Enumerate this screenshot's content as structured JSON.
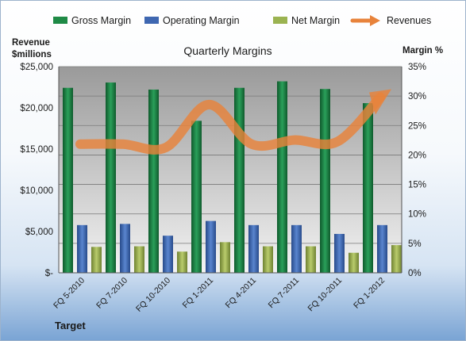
{
  "chart_data": {
    "type": "bar",
    "title": "Quarterly Margins",
    "left_axis_label": [
      "Revenue",
      "$millions"
    ],
    "right_axis_label": "Margin %",
    "xlabel": "Target",
    "categories": [
      "FQ 5-2010",
      "FQ 7-2010",
      "FQ 10-2010",
      "FQ 1-2011",
      "FQ 4-2011",
      "FQ 7-2011",
      "FQ 10-2011",
      "FQ 1-2012"
    ],
    "left_ticks": [
      "$-",
      "$5,000",
      "$10,000",
      "$15,000",
      "$20,000",
      "$25,000"
    ],
    "right_ticks": [
      "0%",
      "5%",
      "10%",
      "15%",
      "20%",
      "25%",
      "30%",
      "35%"
    ],
    "left_ylim": [
      0,
      25000
    ],
    "right_ylim": [
      0,
      35
    ],
    "legend_position": "top",
    "grid": true,
    "series": [
      {
        "name": "Gross Margin",
        "type": "bar",
        "axis": "right",
        "color": "#1f8a46",
        "values": [
          31.4,
          32.3,
          31.1,
          25.8,
          31.4,
          32.5,
          31.2,
          28.8
        ]
      },
      {
        "name": "Operating Margin",
        "type": "bar",
        "axis": "right",
        "color": "#3f67b1",
        "values": [
          8.1,
          8.3,
          6.3,
          8.8,
          8.1,
          8.1,
          6.6,
          8.1
        ]
      },
      {
        "name": "Net Margin",
        "type": "bar",
        "axis": "right",
        "color": "#9bb351",
        "values": [
          4.4,
          4.5,
          3.6,
          5.2,
          4.5,
          4.5,
          3.4,
          4.7
        ]
      },
      {
        "name": "Revenues",
        "type": "line",
        "axis": "left",
        "color": "#e8833b",
        "values": [
          15600,
          15600,
          15200,
          20400,
          15600,
          16100,
          15900,
          21300
        ]
      }
    ]
  }
}
